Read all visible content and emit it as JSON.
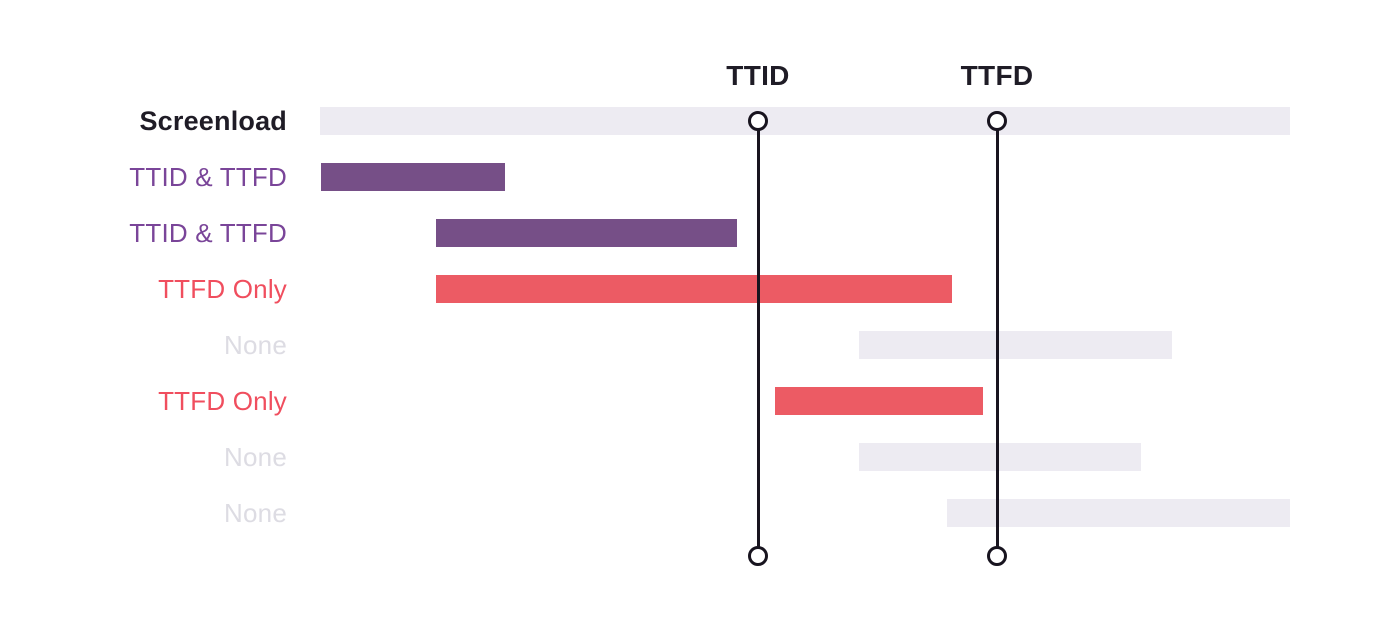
{
  "chart_data": {
    "type": "bar",
    "variant": "gantt-timeline",
    "title": "",
    "xlim": [
      0,
      970
    ],
    "grid": false,
    "rows": [
      {
        "label": "Screenload",
        "style": "screenload",
        "start": 0,
        "end": 970
      },
      {
        "label": "TTID & TTFD",
        "style": "ttid_ttfd",
        "start": 1,
        "end": 185
      },
      {
        "label": "TTID & TTFD",
        "style": "ttid_ttfd",
        "start": 116,
        "end": 417
      },
      {
        "label": "TTFD Only",
        "style": "ttfd_only",
        "start": 116,
        "end": 632
      },
      {
        "label": "None",
        "style": "none",
        "start": 539,
        "end": 852
      },
      {
        "label": "TTFD Only",
        "style": "ttfd_only",
        "start": 455,
        "end": 663
      },
      {
        "label": "None",
        "style": "none",
        "start": 539,
        "end": 821
      },
      {
        "label": "None",
        "style": "none",
        "start": 627,
        "end": 970
      }
    ],
    "markers": [
      {
        "label": "TTID",
        "x": 438
      },
      {
        "label": "TTFD",
        "x": 677
      }
    ]
  },
  "styles": {
    "screenload": {
      "bar": "#EDEBF2",
      "label": "#1F1C26"
    },
    "ttid_ttfd": {
      "bar": "#764F87",
      "label": "#7A4599"
    },
    "ttfd_only": {
      "bar": "#EC5B64",
      "label": "#F04E5E"
    },
    "none": {
      "bar": "#EDEBF2",
      "label": "#DDDCE3"
    }
  },
  "marker_style": {
    "line_color": "#18141F",
    "circle_fill": "#FFFFFF",
    "label_color": "#1F1C26"
  },
  "background": "#FFFFFF"
}
